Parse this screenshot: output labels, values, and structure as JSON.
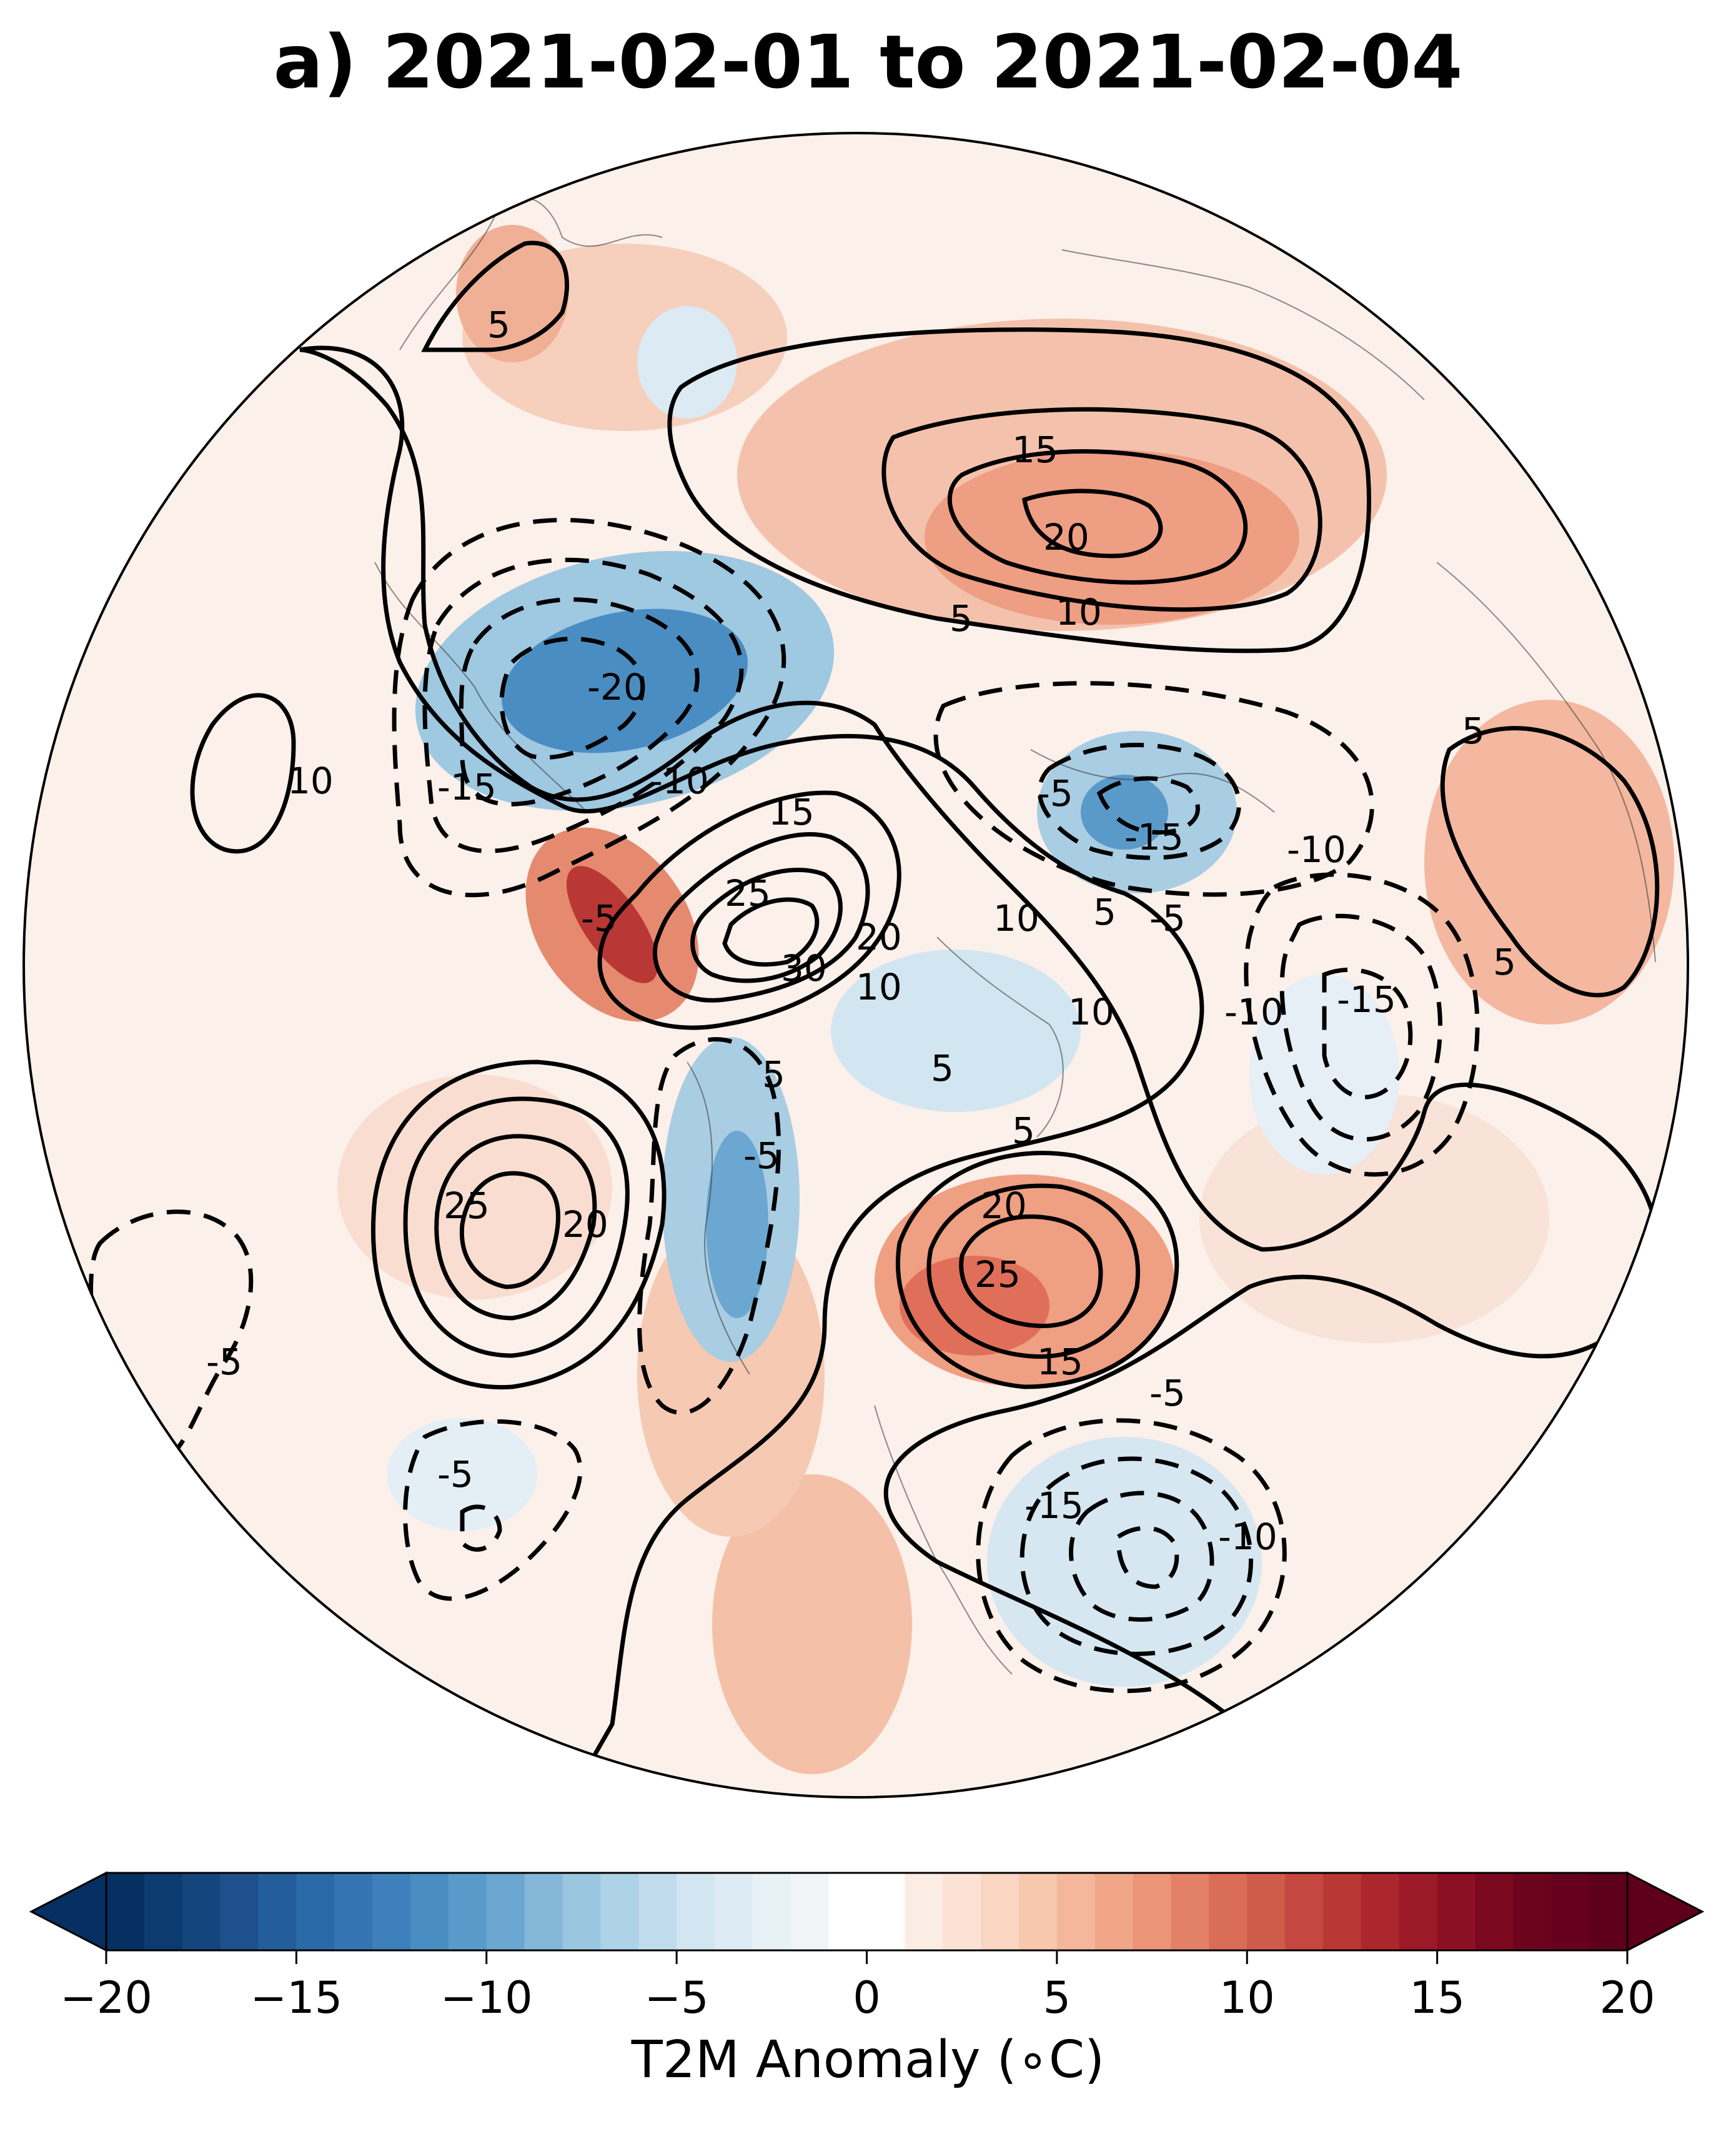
{
  "title": "a) 2021-02-01 to 2021-02-04",
  "map": {
    "projection": "north-polar-stereographic",
    "shading_variable": "T2M Anomaly",
    "contour_labels": {
      "positive": [
        "5",
        "10",
        "15",
        "20",
        "25",
        "30"
      ],
      "negative": [
        "-5",
        "-10",
        "-15",
        "-20"
      ]
    }
  },
  "colorbar": {
    "label": "T2M Anomaly ($^\\circ$C)",
    "label_display": "T2M Anomaly (∘C)",
    "min": -20,
    "max": 20,
    "step": 1,
    "ticks": [
      "−20",
      "−15",
      "−10",
      "−5",
      "0",
      "5",
      "10",
      "15",
      "20"
    ],
    "colors": [
      "#053061",
      "#0d3a6f",
      "#15457d",
      "#1d508c",
      "#245d9b",
      "#2b6aa8",
      "#3474b3",
      "#3d80bb",
      "#4a8dc2",
      "#5a9ac9",
      "#6ba7d0",
      "#84b7d8",
      "#9ac6e0",
      "#aed2e7",
      "#c0dbec",
      "#d2e6f1",
      "#ddecf4",
      "#e8f1f6",
      "#f2f5f8",
      "#ffffff",
      "#ffffff",
      "#fbece4",
      "#fbe2d4",
      "#f9d5c2",
      "#f7c7ae",
      "#f5b79b",
      "#f1a689",
      "#ec9478",
      "#e38168",
      "#da6d58",
      "#cf5b4b",
      "#c4483f",
      "#b93735",
      "#ac262d",
      "#9c1a28",
      "#8b1024",
      "#7a0920",
      "#6d041e",
      "#67001f",
      "#5e001c"
    ]
  }
}
